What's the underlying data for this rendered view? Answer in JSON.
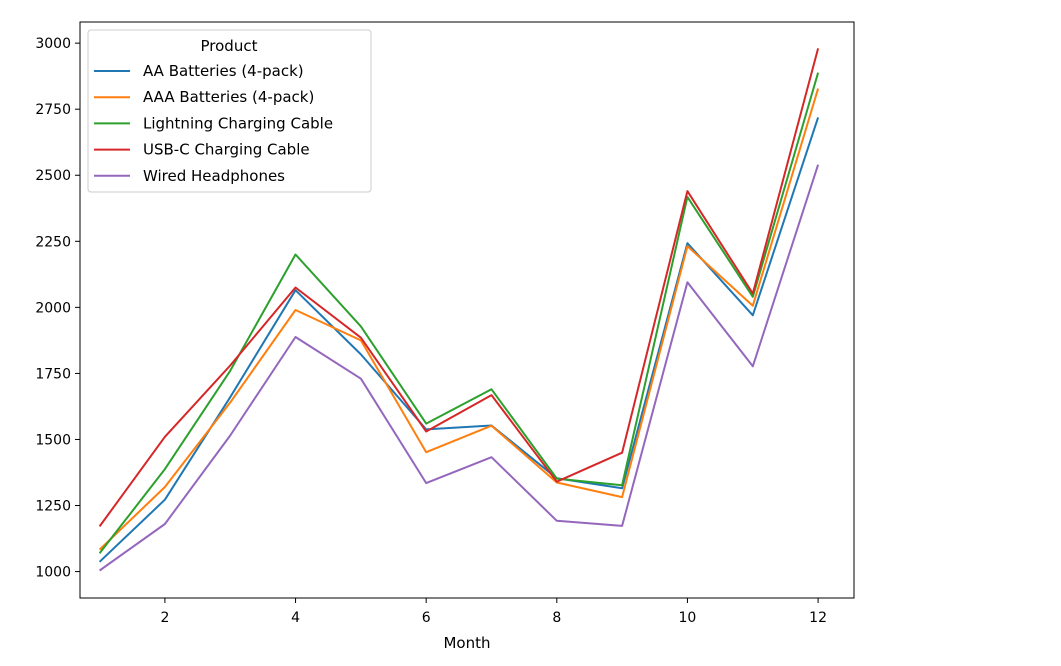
{
  "chart_data": {
    "type": "line",
    "title": "",
    "xlabel": "Month",
    "ylabel": "",
    "xlim": [
      0.7,
      12.55
    ],
    "ylim": [
      900,
      3080
    ],
    "x_ticks": [
      2,
      4,
      6,
      8,
      10,
      12
    ],
    "y_ticks": [
      1000,
      1250,
      1500,
      1750,
      2000,
      2250,
      2500,
      2750,
      3000
    ],
    "grid": false,
    "legend": {
      "title": "Product",
      "placement": "top-left"
    },
    "x": [
      1,
      2,
      3,
      4,
      5,
      6,
      7,
      8,
      9,
      10,
      11,
      12
    ],
    "series": [
      {
        "name": "AA Batteries (4-pack)",
        "color": "#1f77b4",
        "values": [
          1037,
          1272,
          1660,
          2065,
          1822,
          1538,
          1553,
          1353,
          1315,
          2243,
          1970,
          2719
        ]
      },
      {
        "name": "AAA Batteries (4-pack)",
        "color": "#ff7f0e",
        "values": [
          1083,
          1320,
          1640,
          1990,
          1875,
          1452,
          1552,
          1337,
          1282,
          2232,
          2006,
          2828
        ]
      },
      {
        "name": "Lightning Charging Cable",
        "color": "#2ca02c",
        "values": [
          1069,
          1388,
          1760,
          2200,
          1928,
          1560,
          1690,
          1352,
          1327,
          2418,
          2040,
          2888
        ]
      },
      {
        "name": "USB-C Charging Cable",
        "color": "#d62728",
        "values": [
          1171,
          1510,
          1780,
          2075,
          1885,
          1530,
          1668,
          1340,
          1450,
          2440,
          2052,
          2980
        ]
      },
      {
        "name": "Wired Headphones",
        "color": "#9467bd",
        "values": [
          1004,
          1180,
          1515,
          1888,
          1730,
          1335,
          1433,
          1192,
          1173,
          2095,
          1777,
          2540
        ]
      }
    ]
  }
}
